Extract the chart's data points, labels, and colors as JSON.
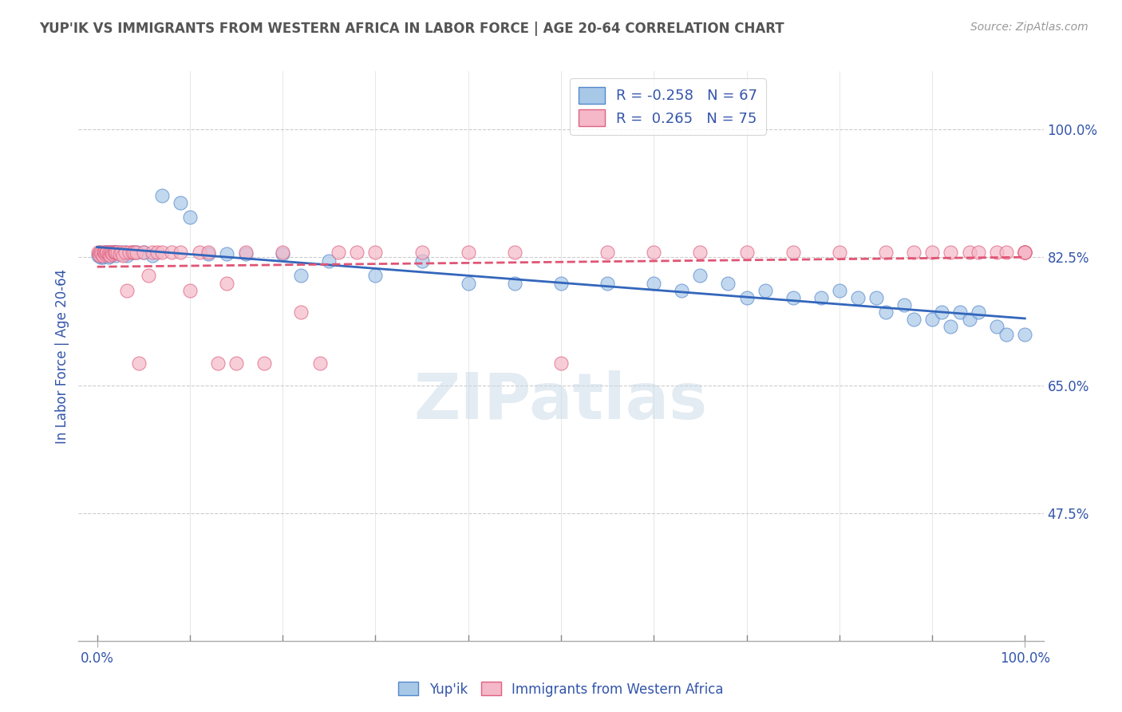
{
  "title": "YUP'IK VS IMMIGRANTS FROM WESTERN AFRICA IN LABOR FORCE | AGE 20-64 CORRELATION CHART",
  "source": "Source: ZipAtlas.com",
  "ylabel": "In Labor Force | Age 20-64",
  "legend_labels": [
    "Yup'ik",
    "Immigrants from Western Africa"
  ],
  "blue_R": -0.258,
  "blue_N": 67,
  "pink_R": 0.265,
  "pink_N": 75,
  "blue_color": "#a8c8e8",
  "pink_color": "#f4b8c8",
  "blue_edge_color": "#5588cc",
  "pink_edge_color": "#e06080",
  "blue_line_color": "#3366bb",
  "pink_line_color": "#e05575",
  "title_color": "#555555",
  "label_color": "#3355aa",
  "watermark_color": "#c8d8e8",
  "watermark": "ZIPatlas",
  "xlim": [
    -0.02,
    1.02
  ],
  "ylim": [
    0.3,
    1.08
  ],
  "yticks": [
    0.475,
    0.65,
    0.825,
    1.0
  ],
  "ytick_labels": [
    "47.5%",
    "65.0%",
    "82.5%",
    "100.0%"
  ],
  "blue_scatter_x": [
    0.001,
    0.002,
    0.003,
    0.004,
    0.005,
    0.006,
    0.007,
    0.008,
    0.009,
    0.01,
    0.011,
    0.012,
    0.013,
    0.014,
    0.015,
    0.016,
    0.017,
    0.018,
    0.019,
    0.02,
    0.022,
    0.025,
    0.028,
    0.03,
    0.032,
    0.038,
    0.042,
    0.05,
    0.06,
    0.07,
    0.09,
    0.1,
    0.12,
    0.14,
    0.16,
    0.2,
    0.22,
    0.25,
    0.3,
    0.35,
    0.4,
    0.45,
    0.5,
    0.55,
    0.6,
    0.63,
    0.65,
    0.68,
    0.7,
    0.72,
    0.75,
    0.78,
    0.8,
    0.82,
    0.84,
    0.85,
    0.87,
    0.88,
    0.9,
    0.91,
    0.92,
    0.93,
    0.94,
    0.95,
    0.97,
    0.98,
    1.0
  ],
  "blue_scatter_y": [
    0.828,
    0.83,
    0.832,
    0.825,
    0.828,
    0.826,
    0.83,
    0.83,
    0.828,
    0.832,
    0.83,
    0.825,
    0.832,
    0.828,
    0.83,
    0.832,
    0.83,
    0.832,
    0.832,
    0.828,
    0.832,
    0.832,
    0.83,
    0.832,
    0.828,
    0.832,
    0.832,
    0.832,
    0.828,
    0.91,
    0.9,
    0.88,
    0.83,
    0.83,
    0.83,
    0.83,
    0.8,
    0.82,
    0.8,
    0.82,
    0.79,
    0.79,
    0.79,
    0.79,
    0.79,
    0.78,
    0.8,
    0.79,
    0.77,
    0.78,
    0.77,
    0.77,
    0.78,
    0.77,
    0.77,
    0.75,
    0.76,
    0.74,
    0.74,
    0.75,
    0.73,
    0.75,
    0.74,
    0.75,
    0.73,
    0.72,
    0.72
  ],
  "pink_scatter_x": [
    0.001,
    0.002,
    0.003,
    0.004,
    0.005,
    0.006,
    0.007,
    0.008,
    0.009,
    0.01,
    0.011,
    0.012,
    0.013,
    0.014,
    0.015,
    0.016,
    0.017,
    0.018,
    0.019,
    0.02,
    0.022,
    0.024,
    0.026,
    0.028,
    0.03,
    0.032,
    0.035,
    0.038,
    0.04,
    0.042,
    0.045,
    0.05,
    0.055,
    0.06,
    0.065,
    0.07,
    0.08,
    0.09,
    0.1,
    0.11,
    0.12,
    0.13,
    0.14,
    0.15,
    0.16,
    0.18,
    0.2,
    0.22,
    0.24,
    0.26,
    0.28,
    0.3,
    0.35,
    0.4,
    0.45,
    0.5,
    0.55,
    0.6,
    0.65,
    0.7,
    0.75,
    0.8,
    0.85,
    0.88,
    0.9,
    0.92,
    0.94,
    0.95,
    0.97,
    0.98,
    1.0,
    1.0,
    1.0,
    1.0,
    1.0
  ],
  "pink_scatter_y": [
    0.832,
    0.83,
    0.828,
    0.832,
    0.83,
    0.828,
    0.832,
    0.832,
    0.83,
    0.832,
    0.832,
    0.83,
    0.832,
    0.828,
    0.832,
    0.832,
    0.83,
    0.832,
    0.832,
    0.832,
    0.832,
    0.83,
    0.832,
    0.828,
    0.832,
    0.78,
    0.832,
    0.832,
    0.832,
    0.832,
    0.68,
    0.832,
    0.8,
    0.832,
    0.832,
    0.832,
    0.832,
    0.832,
    0.78,
    0.832,
    0.832,
    0.68,
    0.79,
    0.68,
    0.832,
    0.68,
    0.832,
    0.75,
    0.68,
    0.832,
    0.832,
    0.832,
    0.832,
    0.832,
    0.832,
    0.68,
    0.832,
    0.832,
    0.832,
    0.832,
    0.832,
    0.832,
    0.832,
    0.832,
    0.832,
    0.832,
    0.832,
    0.832,
    0.832,
    0.832,
    0.832,
    0.832,
    0.832,
    0.832,
    0.832
  ]
}
